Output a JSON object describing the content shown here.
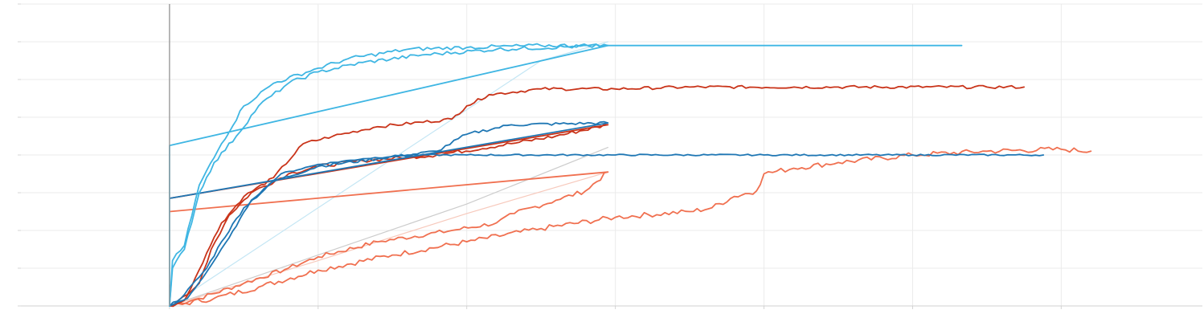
{
  "chart_data": {
    "type": "line",
    "title": "",
    "xlabel": "",
    "ylabel": "",
    "xlim": [
      -1.0,
      6.95
    ],
    "ylim": [
      0,
      8
    ],
    "x_gridlines": [
      0,
      1,
      2,
      3,
      4,
      5,
      6
    ],
    "y_gridlines": [
      1,
      2,
      3,
      4,
      5,
      6,
      7,
      8
    ],
    "grid": true,
    "legend": "none",
    "reference_axis_x": 0,
    "colors": {
      "sky": "#3fb6e3",
      "pale_sky": "#c4e6f4",
      "red": "#c9341a",
      "coral": "#f07050",
      "pale_coral": "#f7c9bc",
      "blue": "#1f77b4",
      "grey": "#cccccc"
    },
    "series": [
      {
        "color": "#c4e6f4",
        "width": 1.2,
        "points": [
          [
            0.0,
            0.0
          ],
          [
            0.5,
            1.3
          ],
          [
            1.0,
            2.6
          ],
          [
            1.5,
            3.9
          ],
          [
            2.0,
            5.2
          ],
          [
            2.5,
            6.5
          ],
          [
            2.95,
            7.0
          ]
        ]
      },
      {
        "color": "#cccccc",
        "width": 1.2,
        "points": [
          [
            0.0,
            0.0
          ],
          [
            1.0,
            1.35
          ],
          [
            2.0,
            2.7
          ],
          [
            2.95,
            4.2
          ]
        ]
      },
      {
        "color": "#f7c9bc",
        "width": 1.2,
        "points": [
          [
            0.0,
            0.0
          ],
          [
            1.0,
            1.2
          ],
          [
            2.0,
            2.45
          ],
          [
            2.95,
            3.55
          ]
        ]
      },
      {
        "color": "#f07050",
        "width": 1.8,
        "noise": 0.06,
        "points": [
          [
            0.0,
            0.0
          ],
          [
            0.2,
            0.2
          ],
          [
            0.5,
            0.6
          ],
          [
            0.8,
            1.0
          ],
          [
            1.0,
            1.3
          ],
          [
            1.4,
            1.7
          ],
          [
            1.9,
            2.0
          ],
          [
            2.2,
            2.2
          ],
          [
            2.32,
            2.45
          ],
          [
            2.6,
            2.8
          ],
          [
            2.8,
            3.05
          ],
          [
            2.95,
            3.55
          ],
          [
            0.0,
            2.5
          ]
        ]
      },
      {
        "color": "#f07050",
        "width": 1.8,
        "noise": 0.07,
        "points": [
          [
            0.0,
            0.0
          ],
          [
            0.3,
            0.2
          ],
          [
            0.6,
            0.5
          ],
          [
            1.0,
            0.95
          ],
          [
            1.5,
            1.35
          ],
          [
            2.0,
            1.7
          ],
          [
            2.5,
            2.05
          ],
          [
            3.0,
            2.35
          ],
          [
            3.5,
            2.5
          ],
          [
            3.65,
            2.6
          ],
          [
            3.8,
            2.9
          ],
          [
            3.95,
            3.05
          ],
          [
            4.0,
            3.5
          ],
          [
            4.2,
            3.65
          ],
          [
            4.5,
            3.8
          ],
          [
            5.0,
            4.0
          ],
          [
            5.5,
            4.1
          ],
          [
            6.0,
            4.15
          ],
          [
            6.2,
            4.1
          ]
        ]
      },
      {
        "color": "#c9341a",
        "width": 1.8,
        "noise": 0.05,
        "points": [
          [
            0.0,
            0.0
          ],
          [
            0.1,
            0.15
          ],
          [
            0.2,
            0.6
          ],
          [
            0.28,
            1.5
          ],
          [
            0.4,
            2.4
          ],
          [
            0.55,
            3.0
          ],
          [
            0.8,
            3.5
          ],
          [
            1.0,
            3.7
          ],
          [
            1.3,
            3.85
          ],
          [
            1.8,
            4.0
          ],
          [
            2.3,
            4.3
          ],
          [
            2.6,
            4.5
          ],
          [
            2.95,
            4.8
          ],
          [
            0.0,
            2.85
          ]
        ]
      },
      {
        "color": "#c9341a",
        "width": 1.8,
        "noise": 0.04,
        "points": [
          [
            0.0,
            0.0
          ],
          [
            0.12,
            0.3
          ],
          [
            0.25,
            1.4
          ],
          [
            0.35,
            2.2
          ],
          [
            0.5,
            2.9
          ],
          [
            0.7,
            3.4
          ],
          [
            0.9,
            4.3
          ],
          [
            1.1,
            4.5
          ],
          [
            1.4,
            4.75
          ],
          [
            1.9,
            4.95
          ],
          [
            2.0,
            5.3
          ],
          [
            2.15,
            5.6
          ],
          [
            2.5,
            5.75
          ],
          [
            3.0,
            5.75
          ],
          [
            3.5,
            5.8
          ],
          [
            4.5,
            5.8
          ],
          [
            5.5,
            5.8
          ],
          [
            5.75,
            5.8
          ]
        ]
      },
      {
        "color": "#1f77b4",
        "width": 1.8,
        "noise": 0.04,
        "points": [
          [
            0.0,
            0.0
          ],
          [
            0.1,
            0.3
          ],
          [
            0.25,
            1.0
          ],
          [
            0.35,
            1.7
          ],
          [
            0.5,
            2.6
          ],
          [
            0.7,
            3.3
          ],
          [
            1.0,
            3.7
          ],
          [
            1.4,
            3.9
          ],
          [
            1.8,
            4.1
          ],
          [
            2.0,
            4.55
          ],
          [
            2.3,
            4.8
          ],
          [
            2.95,
            4.85
          ],
          [
            0.0,
            2.85
          ]
        ]
      },
      {
        "color": "#1f77b4",
        "width": 1.8,
        "noise": 0.02,
        "points": [
          [
            0.0,
            0.0
          ],
          [
            0.12,
            0.2
          ],
          [
            0.25,
            0.9
          ],
          [
            0.4,
            1.8
          ],
          [
            0.55,
            2.8
          ],
          [
            0.75,
            3.5
          ],
          [
            1.0,
            3.75
          ],
          [
            1.3,
            3.9
          ],
          [
            1.6,
            4.0
          ],
          [
            2.0,
            4.0
          ],
          [
            3.0,
            4.0
          ],
          [
            4.0,
            4.0
          ],
          [
            5.0,
            4.0
          ],
          [
            5.88,
            4.0
          ]
        ]
      },
      {
        "color": "#3fb6e3",
        "width": 1.8,
        "noise": 0.05,
        "points": [
          [
            0.0,
            0.0
          ],
          [
            0.02,
            1.0
          ],
          [
            0.1,
            1.5
          ],
          [
            0.2,
            3.0
          ],
          [
            0.3,
            3.8
          ],
          [
            0.45,
            4.5
          ],
          [
            0.6,
            5.3
          ],
          [
            0.8,
            5.9
          ],
          [
            1.0,
            6.2
          ],
          [
            1.3,
            6.45
          ],
          [
            1.7,
            6.65
          ],
          [
            2.2,
            6.8
          ],
          [
            2.95,
            6.9
          ]
        ]
      },
      {
        "color": "#3fb6e3",
        "width": 1.8,
        "noise": 0.05,
        "points": [
          [
            0.0,
            0.0
          ],
          [
            0.02,
            1.2
          ],
          [
            0.1,
            1.6
          ],
          [
            0.2,
            3.2
          ],
          [
            0.35,
            4.3
          ],
          [
            0.5,
            5.3
          ],
          [
            0.7,
            5.9
          ],
          [
            1.0,
            6.3
          ],
          [
            1.2,
            6.55
          ],
          [
            1.6,
            6.8
          ],
          [
            2.0,
            6.85
          ],
          [
            2.5,
            6.9
          ],
          [
            2.95,
            6.9
          ],
          [
            0.0,
            4.25
          ],
          [
            0.0,
            0.0
          ]
        ]
      },
      {
        "color": "#3fb6e3",
        "width": 1.8,
        "points": [
          [
            2.95,
            6.9
          ],
          [
            3.5,
            6.9
          ],
          [
            4.5,
            6.9
          ],
          [
            5.33,
            6.9
          ]
        ]
      }
    ]
  }
}
